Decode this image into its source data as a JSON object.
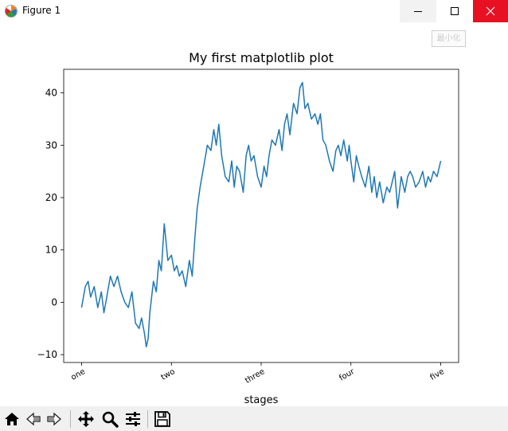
{
  "window": {
    "title": "Figure 1"
  },
  "tooltip": {
    "text": "最小化"
  },
  "icons": {
    "app": "matplotlib-icon",
    "minimize": "minimize-icon",
    "maximize": "maximize-icon",
    "close": "close-icon",
    "home": "home-icon",
    "back": "back-arrow-icon",
    "forward": "forward-arrow-icon",
    "pan": "move-icon",
    "zoom": "magnifier-icon",
    "configure": "sliders-icon",
    "save": "floppy-disk-icon"
  },
  "colors": {
    "line": "#1f77b4",
    "close_button": "#e81123",
    "toolbar_bg": "#f0f0f0"
  },
  "chart_data": {
    "type": "line",
    "title": "My first matplotlib plot",
    "xlabel": "stages",
    "ylabel": "",
    "xlim": [
      -50,
      1050
    ],
    "ylim": [
      -11.5,
      44.5
    ],
    "xticks": [
      0,
      250,
      500,
      750,
      1000
    ],
    "xtick_labels": [
      "one",
      "two",
      "three",
      "four",
      "five"
    ],
    "yticks": [
      -10,
      0,
      10,
      20,
      30,
      40
    ],
    "ytick_labels": [
      "−10",
      "0",
      "10",
      "20",
      "30",
      "40"
    ],
    "grid": false,
    "series": [
      {
        "x": [
          0,
          10,
          18,
          25,
          35,
          45,
          55,
          62,
          70,
          80,
          90,
          100,
          110,
          120,
          130,
          140,
          150,
          160,
          167,
          175,
          180,
          185,
          190,
          200,
          208,
          215,
          222,
          230,
          240,
          250,
          258,
          265,
          272,
          280,
          290,
          300,
          308,
          315,
          322,
          330,
          340,
          350,
          360,
          368,
          375,
          382,
          390,
          400,
          410,
          418,
          425,
          432,
          440,
          450,
          458,
          465,
          472,
          480,
          490,
          500,
          508,
          515,
          522,
          530,
          540,
          550,
          558,
          565,
          572,
          580,
          590,
          600,
          608,
          615,
          622,
          630,
          640,
          650,
          658,
          665,
          672,
          680,
          690,
          700,
          708,
          715,
          722,
          730,
          740,
          745,
          750,
          758,
          765,
          772,
          780,
          790,
          800,
          808,
          815,
          822,
          830,
          840,
          850,
          858,
          865,
          872,
          880,
          890,
          900,
          908,
          915,
          922,
          930,
          940,
          950,
          958,
          965,
          972,
          980,
          990,
          1000
        ],
        "y": [
          -1,
          3,
          4,
          1,
          3,
          -1,
          2,
          -2,
          1,
          5,
          3,
          5,
          2,
          0,
          -1,
          2,
          -4,
          -5,
          -3,
          -6,
          -8.5,
          -7,
          -2,
          4,
          2,
          8,
          6,
          15,
          8,
          9,
          6,
          7,
          5,
          6,
          3,
          8,
          5,
          12,
          18,
          22,
          26,
          30,
          29,
          33,
          30,
          34,
          28,
          24,
          23,
          27,
          22,
          26,
          25,
          21,
          28,
          30,
          27,
          28,
          24,
          22,
          26,
          24,
          28,
          31,
          30,
          33,
          29,
          34,
          36,
          32,
          38,
          36,
          41,
          42,
          37,
          38,
          35,
          36,
          34,
          36,
          31,
          30,
          27,
          25,
          29,
          30,
          28,
          31,
          27,
          30,
          27,
          23,
          28,
          26,
          24,
          22,
          26,
          21,
          24,
          20,
          23,
          19,
          22,
          21,
          23,
          25,
          18,
          24,
          21,
          24,
          25,
          24,
          22,
          23,
          25,
          22,
          24,
          23,
          25,
          24,
          27
        ]
      }
    ]
  }
}
